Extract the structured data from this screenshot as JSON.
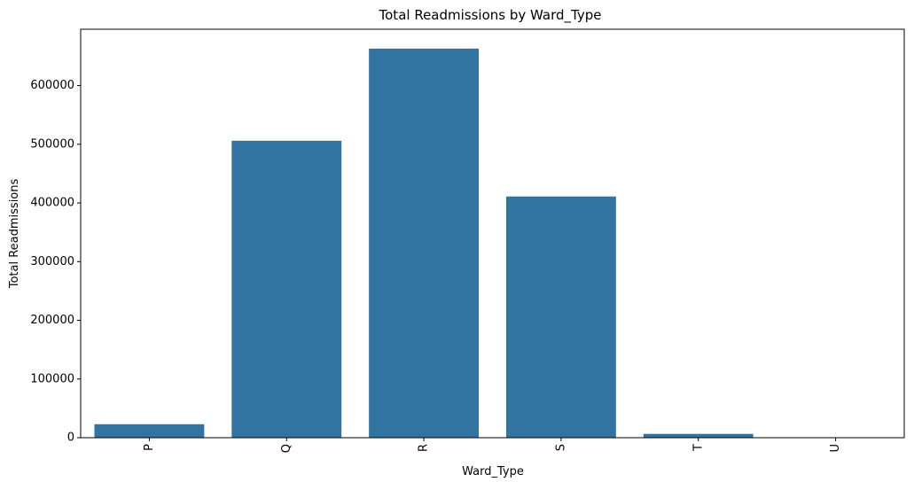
{
  "chart_data": {
    "type": "bar",
    "title": "Total Readmissions by Ward_Type",
    "xlabel": "Ward_Type",
    "ylabel": "Total Readmissions",
    "categories": [
      "P",
      "Q",
      "R",
      "S",
      "T",
      "U"
    ],
    "values": [
      23000,
      506000,
      663000,
      411000,
      6500,
      0
    ],
    "ylim": [
      0,
      696000
    ],
    "yticks": [
      0,
      100000,
      200000,
      300000,
      400000,
      500000,
      600000
    ],
    "ytick_labels": [
      "0",
      "100000",
      "200000",
      "300000",
      "400000",
      "500000",
      "600000"
    ],
    "bar_color": "#3274a1",
    "grid": false,
    "xtick_rotation": "vertical"
  }
}
